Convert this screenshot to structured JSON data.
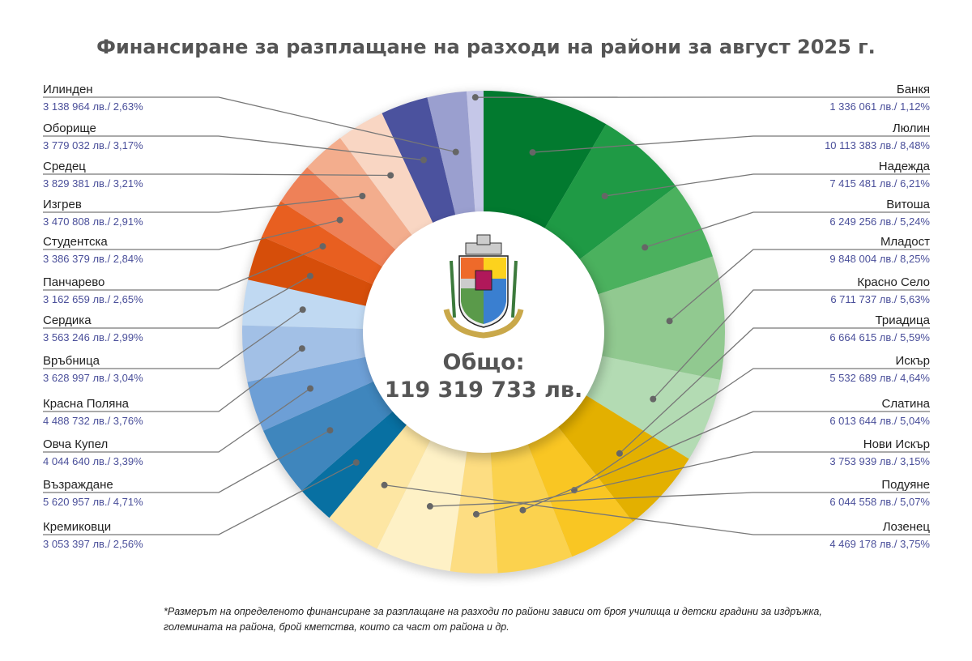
{
  "chart_data": {
    "type": "pie",
    "variant": "donut",
    "title": "Финансиране за разплащане на разходи на райони за август 2025 г.",
    "center_label": "Общо:",
    "center_value": "119 319 733 лв.",
    "unit": "лв.",
    "slices": [
      {
        "name": "Люлин",
        "amount": "10 113 383 лв.",
        "percent": 8.48,
        "percent_label": "8,48%",
        "color": "#027a2f",
        "side": "right"
      },
      {
        "name": "Надежда",
        "amount": "7 415 481 лв.",
        "percent": 6.21,
        "percent_label": "6,21%",
        "color": "#1f9a45",
        "side": "right"
      },
      {
        "name": "Витоша",
        "amount": "6 249 256 лв.",
        "percent": 5.24,
        "percent_label": "5,24%",
        "color": "#4bb15e",
        "side": "right"
      },
      {
        "name": "Младост",
        "amount": "9 848 004 лв.",
        "percent": 8.25,
        "percent_label": "8,25%",
        "color": "#91c990",
        "side": "right"
      },
      {
        "name": "Красно Село",
        "amount": "6 711 737 лв.",
        "percent": 5.63,
        "percent_label": "5,63%",
        "color": "#b3dbb3",
        "side": "right"
      },
      {
        "name": "Триадица",
        "amount": "6 664 615 лв.",
        "percent": 5.59,
        "percent_label": "5,59%",
        "color": "#e3b000",
        "side": "right"
      },
      {
        "name": "Искър",
        "amount": "5 532 689 лв.",
        "percent": 4.64,
        "percent_label": "4,64%",
        "color": "#f9c623",
        "side": "right"
      },
      {
        "name": "Слатина",
        "amount": "6 013 644 лв.",
        "percent": 5.04,
        "percent_label": "5,04%",
        "color": "#fbd24e",
        "side": "right"
      },
      {
        "name": "Нови Искър",
        "amount": "3 753 939 лв.",
        "percent": 3.15,
        "percent_label": "3,15%",
        "color": "#fddd82",
        "side": "right"
      },
      {
        "name": "Подуяне",
        "amount": "6 044 558 лв.",
        "percent": 5.07,
        "percent_label": "5,07%",
        "color": "#fef1c6",
        "side": "right"
      },
      {
        "name": "Лозенец",
        "amount": "4 469 178 лв.",
        "percent": 3.75,
        "percent_label": "3,75%",
        "color": "#fde6a3",
        "side": "right"
      },
      {
        "name": "Кремиковци",
        "amount": "3 053 397 лв.",
        "percent": 2.56,
        "percent_label": "2,56%",
        "color": "#0870a2",
        "side": "left"
      },
      {
        "name": "Възраждане",
        "amount": "5 620 957 лв.",
        "percent": 4.71,
        "percent_label": "4,71%",
        "color": "#3f86bd",
        "side": "left"
      },
      {
        "name": "Овча Купел",
        "amount": "4 044 640 лв.",
        "percent": 3.39,
        "percent_label": "3,39%",
        "color": "#6d9fd6",
        "side": "left"
      },
      {
        "name": "Красна Поляна",
        "amount": "4 488 732 лв.",
        "percent": 3.76,
        "percent_label": "3,76%",
        "color": "#a2c0e6",
        "side": "left"
      },
      {
        "name": "Връбница",
        "amount": "3 628 997 лв.",
        "percent": 3.04,
        "percent_label": "3,04%",
        "color": "#c0d9f2",
        "side": "left"
      },
      {
        "name": "Сердика",
        "amount": "3 563 246 лв.",
        "percent": 2.99,
        "percent_label": "2,99%",
        "color": "#d64e0a",
        "side": "left"
      },
      {
        "name": "Панчарево",
        "amount": "3 162 659 лв.",
        "percent": 2.65,
        "percent_label": "2,65%",
        "color": "#e85f20",
        "side": "left"
      },
      {
        "name": "Студентска",
        "amount": "3 386 379 лв.",
        "percent": 2.84,
        "percent_label": "2,84%",
        "color": "#ee8158",
        "side": "left"
      },
      {
        "name": "Изгрев",
        "amount": "3 470 808 лв.",
        "percent": 2.91,
        "percent_label": "2,91%",
        "color": "#f3ad8d",
        "side": "left"
      },
      {
        "name": "Средец",
        "amount": "3 829 381 лв.",
        "percent": 3.21,
        "percent_label": "3,21%",
        "color": "#f9d6c3",
        "side": "left"
      },
      {
        "name": "Оборище",
        "amount": "3 779 032 лв.",
        "percent": 3.17,
        "percent_label": "3,17%",
        "color": "#4b529e",
        "side": "left"
      },
      {
        "name": "Илинден",
        "amount": "3 138 964 лв.",
        "percent": 2.63,
        "percent_label": "2,63%",
        "color": "#9a9fcf",
        "side": "left"
      },
      {
        "name": "Банкя",
        "amount": "1 336 061 лв.",
        "percent": 1.12,
        "percent_label": "1,12%",
        "color": "#c5c7e8",
        "side": "right"
      }
    ],
    "left_order": [
      "Илинден",
      "Оборище",
      "Средец",
      "Изгрев",
      "Студентска",
      "Панчарево",
      "Сердика",
      "Връбница",
      "Красна Поляна",
      "Овча Купел",
      "Възраждане",
      "Кремиковци"
    ],
    "right_order": [
      "Банкя",
      "Люлин",
      "Надежда",
      "Витоша",
      "Младост",
      "Красно Село",
      "Триадица",
      "Искър",
      "Слатина",
      "Нови Искър",
      "Подуяне",
      "Лозенец"
    ]
  },
  "logo": {
    "motto": "РАСТЕ НО НЕ СТАРЕЕ"
  },
  "footnote": "*Размерът на определеното финансиране за разплащане на разходи по райони зависи от броя училища и детски градини за издръжка, големината на района, брой кметства, които са част от района и др."
}
